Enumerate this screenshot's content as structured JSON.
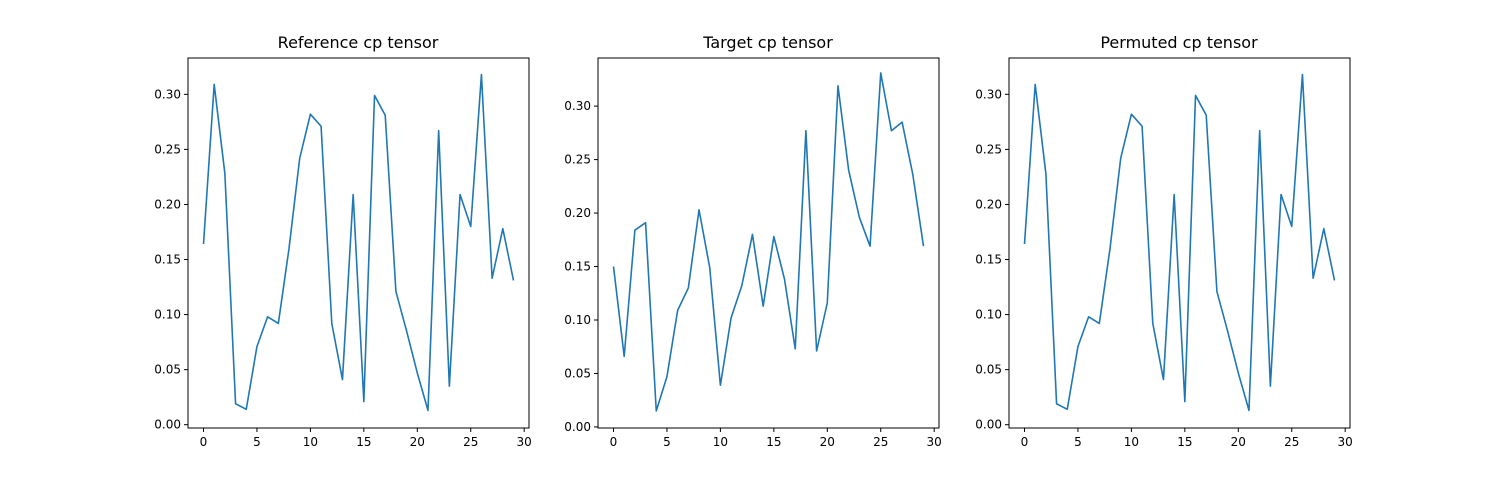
{
  "chart_data": [
    {
      "type": "line",
      "title": "Reference cp tensor",
      "xlabel": "",
      "ylabel": "",
      "xlim": [
        -1.45,
        30.45
      ],
      "ylim": [
        -0.003,
        0.333
      ],
      "xticks": [
        0,
        5,
        10,
        15,
        20,
        25,
        30
      ],
      "xtick_labels": [
        "0",
        "5",
        "10",
        "15",
        "20",
        "25",
        "30"
      ],
      "yticks": [
        0.0,
        0.05,
        0.1,
        0.15,
        0.2,
        0.25,
        0.3
      ],
      "ytick_labels": [
        "0.00",
        "0.05",
        "0.10",
        "0.15",
        "0.20",
        "0.25",
        "0.30"
      ],
      "grid": false,
      "color": "#1f77b4",
      "x": [
        0,
        1,
        2,
        3,
        4,
        5,
        6,
        7,
        8,
        9,
        10,
        11,
        12,
        13,
        14,
        15,
        16,
        17,
        18,
        19,
        20,
        21,
        22,
        23,
        24,
        25,
        26,
        27,
        28,
        29
      ],
      "y": [
        0.164,
        0.309,
        0.228,
        0.019,
        0.014,
        0.071,
        0.098,
        0.092,
        0.16,
        0.242,
        0.282,
        0.271,
        0.092,
        0.041,
        0.209,
        0.021,
        0.299,
        0.281,
        0.121,
        0.085,
        0.047,
        0.013,
        0.267,
        0.035,
        0.209,
        0.18,
        0.318,
        0.133,
        0.178,
        0.131
      ]
    },
    {
      "type": "line",
      "title": "Target cp tensor",
      "xlabel": "",
      "ylabel": "",
      "xlim": [
        -1.45,
        30.45
      ],
      "ylim": [
        -0.001,
        0.345
      ],
      "xticks": [
        0,
        5,
        10,
        15,
        20,
        25,
        30
      ],
      "xtick_labels": [
        "0",
        "5",
        "10",
        "15",
        "20",
        "25",
        "30"
      ],
      "yticks": [
        0.0,
        0.05,
        0.1,
        0.15,
        0.2,
        0.25,
        0.3
      ],
      "ytick_labels": [
        "0.00",
        "0.05",
        "0.10",
        "0.15",
        "0.20",
        "0.25",
        "0.30"
      ],
      "grid": false,
      "color": "#1f77b4",
      "x": [
        0,
        1,
        2,
        3,
        4,
        5,
        6,
        7,
        8,
        9,
        10,
        11,
        12,
        13,
        14,
        15,
        16,
        17,
        18,
        19,
        20,
        21,
        22,
        23,
        24,
        25,
        26,
        27,
        28,
        29
      ],
      "y": [
        0.15,
        0.066,
        0.184,
        0.191,
        0.015,
        0.047,
        0.109,
        0.13,
        0.203,
        0.149,
        0.039,
        0.102,
        0.132,
        0.18,
        0.113,
        0.178,
        0.138,
        0.073,
        0.277,
        0.071,
        0.116,
        0.319,
        0.24,
        0.196,
        0.169,
        0.331,
        0.277,
        0.285,
        0.236,
        0.169
      ]
    },
    {
      "type": "line",
      "title": "Permuted cp tensor",
      "xlabel": "",
      "ylabel": "",
      "xlim": [
        -1.45,
        30.45
      ],
      "ylim": [
        -0.003,
        0.333
      ],
      "xticks": [
        0,
        5,
        10,
        15,
        20,
        25,
        30
      ],
      "xtick_labels": [
        "0",
        "5",
        "10",
        "15",
        "20",
        "25",
        "30"
      ],
      "yticks": [
        0.0,
        0.05,
        0.1,
        0.15,
        0.2,
        0.25,
        0.3
      ],
      "ytick_labels": [
        "0.00",
        "0.05",
        "0.10",
        "0.15",
        "0.20",
        "0.25",
        "0.30"
      ],
      "grid": false,
      "color": "#1f77b4",
      "x": [
        0,
        1,
        2,
        3,
        4,
        5,
        6,
        7,
        8,
        9,
        10,
        11,
        12,
        13,
        14,
        15,
        16,
        17,
        18,
        19,
        20,
        21,
        22,
        23,
        24,
        25,
        26,
        27,
        28,
        29
      ],
      "y": [
        0.164,
        0.309,
        0.228,
        0.019,
        0.014,
        0.071,
        0.098,
        0.092,
        0.16,
        0.242,
        0.282,
        0.271,
        0.092,
        0.041,
        0.209,
        0.021,
        0.299,
        0.281,
        0.121,
        0.085,
        0.047,
        0.013,
        0.267,
        0.035,
        0.209,
        0.18,
        0.318,
        0.133,
        0.178,
        0.131
      ]
    }
  ]
}
